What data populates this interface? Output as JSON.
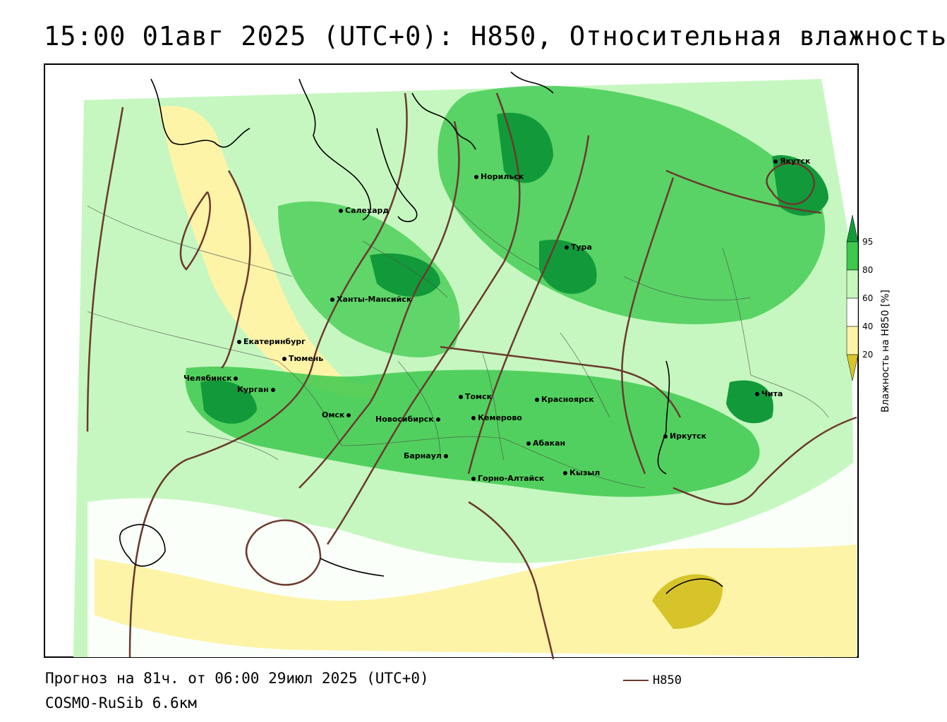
{
  "title": "15:00 01авг 2025 (UTC+0): H850, Относительная влажность",
  "footer": {
    "forecast": "Прогноз на 81ч. от 06:00 29июл 2025 (UTC+0)",
    "model": "COSMO-RuSib 6.6км",
    "legend_line_label": "H850"
  },
  "colorbar": {
    "label": "Влажность на H850 [%]",
    "ticks": [
      "95",
      "80",
      "60",
      "40",
      "20"
    ],
    "colors": {
      "c95": "#129a3a",
      "c80": "#3dc94e",
      "c60": "#c6f7c0",
      "c40": "#ffffff",
      "c20": "#fdf4a8",
      "c0": "#d6c42a"
    }
  },
  "contour_color": "#6b3a2e",
  "cities": [
    {
      "name": "Якутск"
    },
    {
      "name": "Норильск"
    },
    {
      "name": "Салехард"
    },
    {
      "name": "Тура"
    },
    {
      "name": "Ханты-Мансийск"
    },
    {
      "name": "Екатеринбург"
    },
    {
      "name": "Тюмень"
    },
    {
      "name": "Челябинск"
    },
    {
      "name": "Курган"
    },
    {
      "name": "Омск"
    },
    {
      "name": "Новосибирск"
    },
    {
      "name": "Томск"
    },
    {
      "name": "Кемерово"
    },
    {
      "name": "Красноярск"
    },
    {
      "name": "Абакан"
    },
    {
      "name": "Барнаул"
    },
    {
      "name": "Горно-Алтайск"
    },
    {
      "name": "Кызыл"
    },
    {
      "name": "Иркутск"
    },
    {
      "name": "Чита"
    }
  ]
}
